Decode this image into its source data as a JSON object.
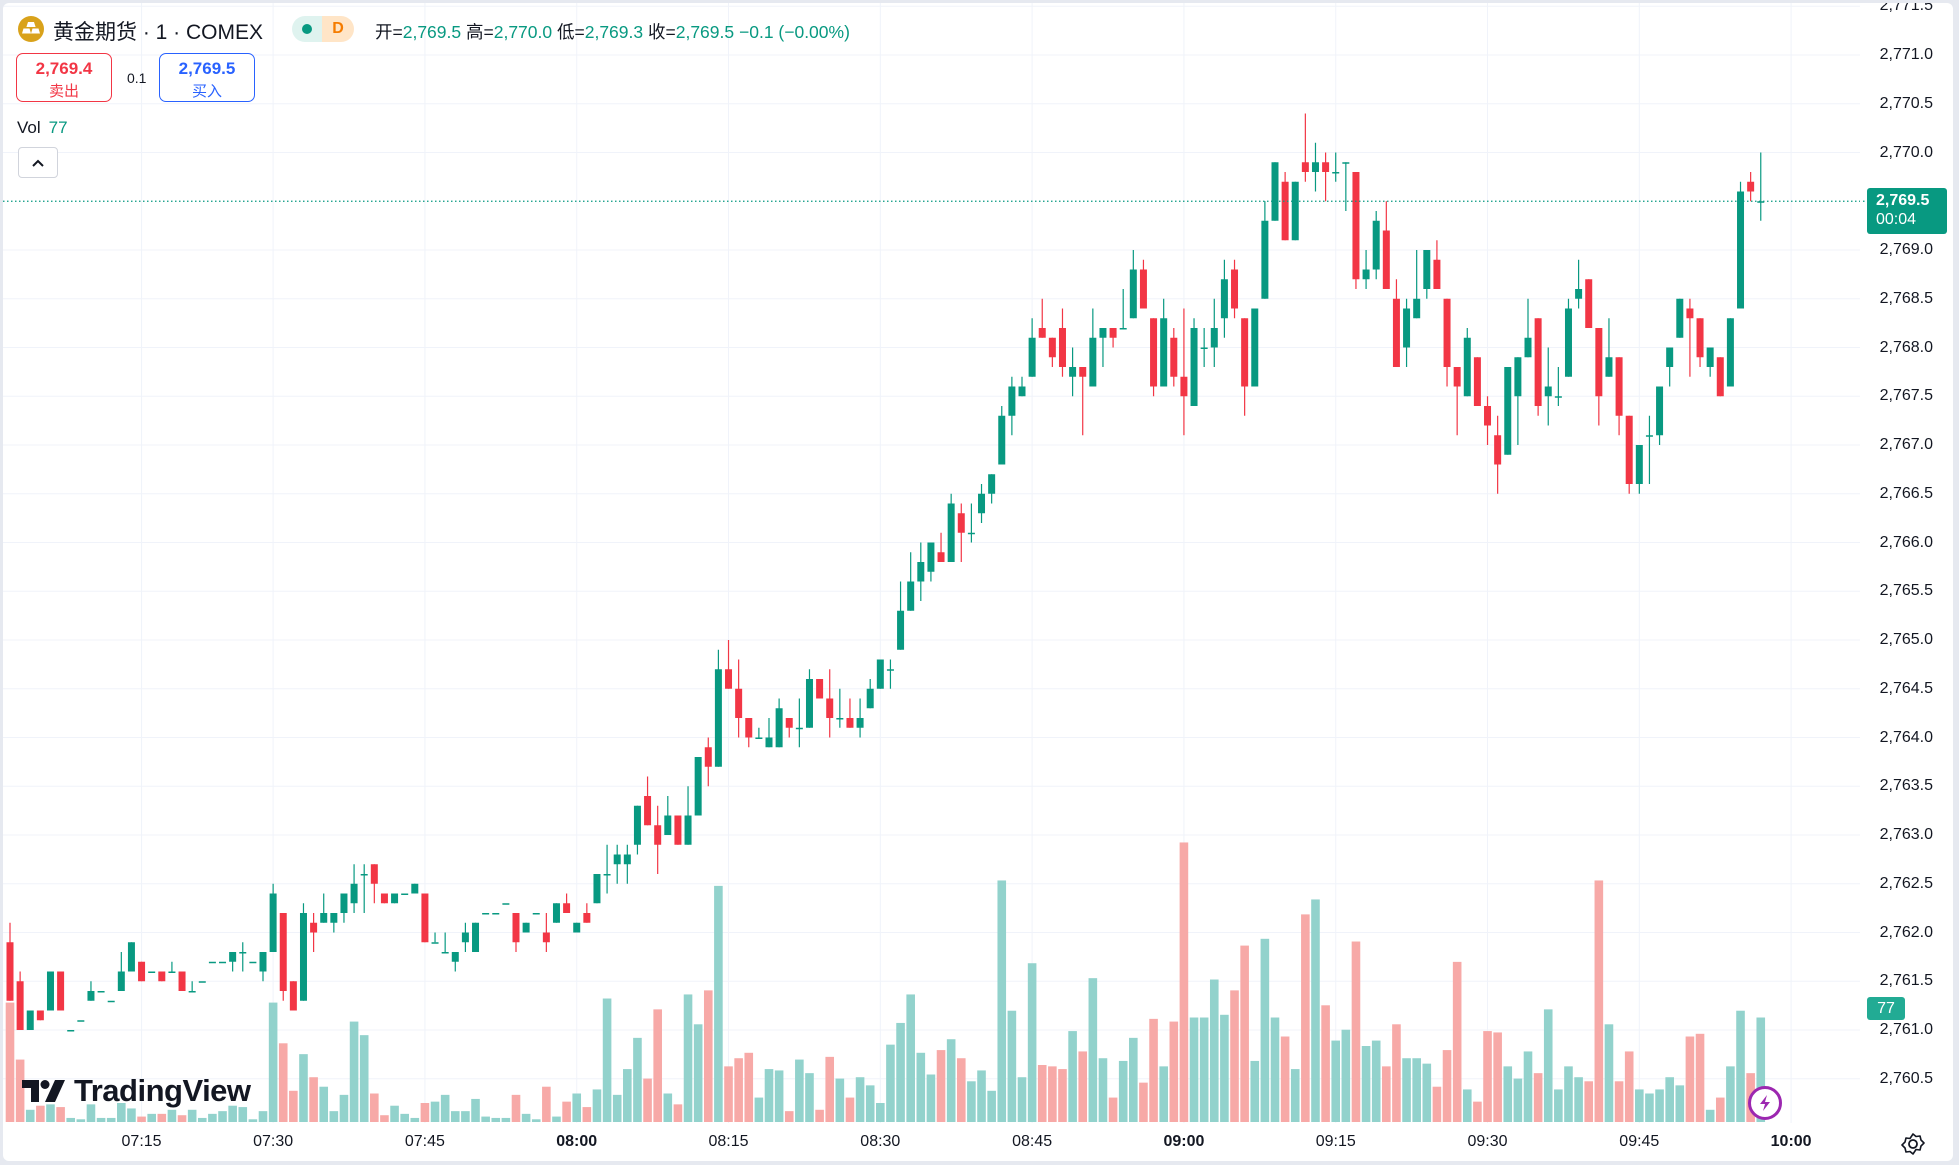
{
  "legend": {
    "symbol_title": "黄金期货 · 1 · COMEX",
    "symbol_icon": "gold-bars-icon",
    "status_letter": "D",
    "ohlc": [
      {
        "key": "开=",
        "value": "2,769.5"
      },
      {
        "key": "高=",
        "value": "2,770.0"
      },
      {
        "key": "低=",
        "value": "2,769.3"
      },
      {
        "key": "收=",
        "value": "2,769.5"
      }
    ],
    "change": "−0.1 (−0.00%)",
    "sell_price": "2,769.4",
    "sell_label": "卖出",
    "spread": "0.1",
    "buy_price": "2,769.5",
    "buy_label": "买入",
    "volume_label": "Vol",
    "volume_value": "77"
  },
  "price_tag": {
    "price": "2,769.5",
    "countdown": "00:04"
  },
  "volume_tag": "77",
  "logo_text": "TradingView",
  "colors": {
    "up": "#089981",
    "down": "#f23645",
    "vol_up": "#92d2cc",
    "vol_down": "#f7a9a7",
    "sell": "#f23645",
    "buy": "#2962ff"
  },
  "chart_data": {
    "type": "candlestick",
    "interval": "1",
    "fields": [
      "open",
      "high",
      "low",
      "close",
      "volume"
    ],
    "ylim": [
      2760.08,
      2771.56
    ],
    "last_price": 2769.5,
    "grid": true,
    "y_ticks": [
      {
        "label": "2,771.5",
        "value": 2771.5
      },
      {
        "label": "2,771.0",
        "value": 2771.0
      },
      {
        "label": "2,770.5",
        "value": 2770.5
      },
      {
        "label": "2,770.0",
        "value": 2770.0
      },
      {
        "label": "2,769.0",
        "value": 2769.0
      },
      {
        "label": "2,768.5",
        "value": 2768.5
      },
      {
        "label": "2,768.0",
        "value": 2768.0
      },
      {
        "label": "2,767.5",
        "value": 2767.5
      },
      {
        "label": "2,767.0",
        "value": 2767.0
      },
      {
        "label": "2,766.5",
        "value": 2766.5
      },
      {
        "label": "2,766.0",
        "value": 2766.0
      },
      {
        "label": "2,765.5",
        "value": 2765.5
      },
      {
        "label": "2,765.0",
        "value": 2765.0
      },
      {
        "label": "2,764.5",
        "value": 2764.5
      },
      {
        "label": "2,764.0",
        "value": 2764.0
      },
      {
        "label": "2,763.5",
        "value": 2763.5
      },
      {
        "label": "2,763.0",
        "value": 2763.0
      },
      {
        "label": "2,762.5",
        "value": 2762.5
      },
      {
        "label": "2,762.0",
        "value": 2762.0
      },
      {
        "label": "2,761.5",
        "value": 2761.5
      },
      {
        "label": "2,761.0",
        "value": 2761.0
      },
      {
        "label": "2,760.5",
        "value": 2760.5
      }
    ],
    "x_ticks": [
      {
        "label": "07:15",
        "bar": 14,
        "bold": false
      },
      {
        "label": "07:30",
        "bar": 27,
        "bold": false
      },
      {
        "label": "07:45",
        "bar": 42,
        "bold": false
      },
      {
        "label": "08:00",
        "bar": 57,
        "bold": true
      },
      {
        "label": "08:15",
        "bar": 72,
        "bold": false
      },
      {
        "label": "08:30",
        "bar": 87,
        "bold": false
      },
      {
        "label": "08:45",
        "bar": 102,
        "bold": false
      },
      {
        "label": "09:00",
        "bar": 117,
        "bold": true
      },
      {
        "label": "09:15",
        "bar": 132,
        "bold": false
      },
      {
        "label": "09:30",
        "bar": 147,
        "bold": false
      },
      {
        "label": "09:45",
        "bar": 162,
        "bold": false
      },
      {
        "label": "10:00",
        "bar": 177,
        "bold": true
      }
    ],
    "ohlcv": [
      [
        2761.9,
        2762.1,
        2761.3,
        2761.3,
        88
      ],
      [
        2761.5,
        2761.6,
        2761.0,
        2761.0,
        46
      ],
      [
        2761.0,
        2761.2,
        2761.0,
        2761.2,
        9
      ],
      [
        2761.2,
        2761.2,
        2761.1,
        2761.1,
        12
      ],
      [
        2761.2,
        2761.6,
        2761.2,
        2761.6,
        13
      ],
      [
        2761.6,
        2761.6,
        2761.2,
        2761.2,
        11
      ],
      [
        2761.0,
        2761.0,
        2761.0,
        2761.0,
        3
      ],
      [
        2761.1,
        2761.1,
        2761.1,
        2761.1,
        2
      ],
      [
        2761.3,
        2761.5,
        2761.3,
        2761.4,
        13
      ],
      [
        2761.4,
        2761.4,
        2761.4,
        2761.4,
        3
      ],
      [
        2761.3,
        2761.3,
        2761.3,
        2761.3,
        3
      ],
      [
        2761.4,
        2761.8,
        2761.4,
        2761.6,
        14
      ],
      [
        2761.6,
        2761.9,
        2761.6,
        2761.9,
        10
      ],
      [
        2761.7,
        2761.7,
        2761.5,
        2761.5,
        4
      ],
      [
        2761.6,
        2761.6,
        2761.6,
        2761.6,
        6
      ],
      [
        2761.6,
        2761.6,
        2761.5,
        2761.5,
        6
      ],
      [
        2761.6,
        2761.7,
        2761.6,
        2761.6,
        9
      ],
      [
        2761.6,
        2761.6,
        2761.4,
        2761.4,
        5
      ],
      [
        2761.4,
        2761.5,
        2761.4,
        2761.4,
        9
      ],
      [
        2761.5,
        2761.5,
        2761.5,
        2761.5,
        3
      ],
      [
        2761.7,
        2761.7,
        2761.7,
        2761.7,
        6
      ],
      [
        2761.7,
        2761.7,
        2761.7,
        2761.7,
        8
      ],
      [
        2761.7,
        2761.8,
        2761.6,
        2761.8,
        12
      ],
      [
        2761.8,
        2761.9,
        2761.6,
        2761.8,
        11
      ],
      [
        2761.7,
        2761.7,
        2761.7,
        2761.7,
        2
      ],
      [
        2761.6,
        2761.8,
        2761.5,
        2761.8,
        8
      ],
      [
        2761.8,
        2762.5,
        2761.8,
        2762.4,
        88
      ],
      [
        2762.2,
        2762.2,
        2761.3,
        2761.4,
        58
      ],
      [
        2761.5,
        2761.5,
        2761.2,
        2761.2,
        23
      ],
      [
        2761.3,
        2762.3,
        2761.3,
        2762.2,
        50
      ],
      [
        2762.1,
        2762.2,
        2761.8,
        2762.0,
        33
      ],
      [
        2762.1,
        2762.4,
        2762.1,
        2762.2,
        26
      ],
      [
        2762.1,
        2762.2,
        2762.0,
        2762.2,
        8
      ],
      [
        2762.2,
        2762.4,
        2762.1,
        2762.4,
        20
      ],
      [
        2762.3,
        2762.7,
        2762.2,
        2762.5,
        74
      ],
      [
        2762.6,
        2762.7,
        2762.2,
        2762.6,
        64
      ],
      [
        2762.7,
        2762.7,
        2762.3,
        2762.5,
        21
      ],
      [
        2762.4,
        2762.4,
        2762.3,
        2762.3,
        5
      ],
      [
        2762.3,
        2762.4,
        2762.3,
        2762.4,
        12
      ],
      [
        2762.4,
        2762.4,
        2762.4,
        2762.4,
        6
      ],
      [
        2762.4,
        2762.5,
        2762.4,
        2762.5,
        3
      ],
      [
        2762.4,
        2762.4,
        2761.9,
        2761.9,
        14
      ],
      [
        2761.9,
        2762.0,
        2761.9,
        2761.9,
        15
      ],
      [
        2761.8,
        2762.0,
        2761.8,
        2761.8,
        20
      ],
      [
        2761.7,
        2761.8,
        2761.6,
        2761.8,
        8
      ],
      [
        2761.9,
        2762.1,
        2761.8,
        2762.0,
        8
      ],
      [
        2761.8,
        2762.1,
        2761.8,
        2762.1,
        17
      ],
      [
        2762.2,
        2762.2,
        2762.2,
        2762.2,
        4
      ],
      [
        2762.2,
        2762.2,
        2762.2,
        2762.2,
        3
      ],
      [
        2762.3,
        2762.3,
        2762.3,
        2762.3,
        3
      ],
      [
        2762.2,
        2762.2,
        2761.8,
        2761.9,
        20
      ],
      [
        2762.0,
        2762.1,
        2762.0,
        2762.1,
        6
      ],
      [
        2762.2,
        2762.2,
        2762.2,
        2762.2,
        2
      ],
      [
        2762.0,
        2762.2,
        2761.8,
        2761.9,
        26
      ],
      [
        2762.1,
        2762.3,
        2762.1,
        2762.3,
        4
      ],
      [
        2762.3,
        2762.4,
        2762.2,
        2762.2,
        15
      ],
      [
        2762.0,
        2762.1,
        2762.0,
        2762.1,
        21
      ],
      [
        2762.2,
        2762.3,
        2762.1,
        2762.1,
        11
      ],
      [
        2762.3,
        2762.6,
        2762.3,
        2762.6,
        24
      ],
      [
        2762.6,
        2762.9,
        2762.4,
        2762.6,
        91
      ],
      [
        2762.7,
        2762.9,
        2762.5,
        2762.8,
        20
      ],
      [
        2762.7,
        2762.9,
        2762.5,
        2762.8,
        39
      ],
      [
        2762.9,
        2763.3,
        2762.8,
        2763.3,
        62
      ],
      [
        2763.4,
        2763.6,
        2763.1,
        2763.1,
        32
      ],
      [
        2763.1,
        2763.3,
        2762.6,
        2762.9,
        83
      ],
      [
        2763.0,
        2763.4,
        2763.0,
        2763.2,
        21
      ],
      [
        2763.2,
        2763.2,
        2762.9,
        2762.9,
        13
      ],
      [
        2762.9,
        2763.5,
        2762.9,
        2763.2,
        94
      ],
      [
        2763.2,
        2763.8,
        2763.2,
        2763.8,
        72
      ],
      [
        2763.9,
        2764.0,
        2763.5,
        2763.7,
        97
      ],
      [
        2763.7,
        2764.9,
        2763.7,
        2764.7,
        174
      ],
      [
        2764.7,
        2765.0,
        2764.5,
        2764.5,
        41
      ],
      [
        2764.5,
        2764.8,
        2764.0,
        2764.2,
        47
      ],
      [
        2764.2,
        2764.2,
        2763.9,
        2764.0,
        51
      ],
      [
        2764.0,
        2764.1,
        2764.0,
        2764.0,
        18
      ],
      [
        2763.9,
        2764.2,
        2763.9,
        2764.0,
        39
      ],
      [
        2763.9,
        2764.4,
        2763.9,
        2764.3,
        38
      ],
      [
        2764.2,
        2764.2,
        2764.0,
        2764.1,
        8
      ],
      [
        2764.1,
        2764.4,
        2763.9,
        2764.1,
        46
      ],
      [
        2764.1,
        2764.7,
        2764.1,
        2764.6,
        36
      ],
      [
        2764.6,
        2764.6,
        2764.4,
        2764.4,
        9
      ],
      [
        2764.4,
        2764.7,
        2764.0,
        2764.2,
        48
      ],
      [
        2764.2,
        2764.5,
        2764.1,
        2764.2,
        32
      ],
      [
        2764.2,
        2764.4,
        2764.1,
        2764.1,
        18
      ],
      [
        2764.1,
        2764.4,
        2764.0,
        2764.2,
        33
      ],
      [
        2764.3,
        2764.6,
        2764.3,
        2764.5,
        27
      ],
      [
        2764.5,
        2764.8,
        2764.5,
        2764.8,
        14
      ],
      [
        2764.7,
        2764.8,
        2764.5,
        2764.7,
        57
      ],
      [
        2764.9,
        2765.6,
        2764.9,
        2765.3,
        73
      ],
      [
        2765.3,
        2765.9,
        2765.3,
        2765.6,
        94
      ],
      [
        2765.6,
        2766.0,
        2765.4,
        2765.8,
        51
      ],
      [
        2765.7,
        2766.0,
        2765.6,
        2766.0,
        35
      ],
      [
        2765.9,
        2766.1,
        2765.8,
        2765.8,
        53
      ],
      [
        2765.8,
        2766.5,
        2765.8,
        2766.4,
        61
      ],
      [
        2766.3,
        2766.4,
        2765.8,
        2766.1,
        47
      ],
      [
        2766.1,
        2766.4,
        2766.0,
        2766.1,
        30
      ],
      [
        2766.3,
        2766.6,
        2766.2,
        2766.5,
        38
      ],
      [
        2766.5,
        2766.7,
        2766.4,
        2766.7,
        23
      ],
      [
        2766.8,
        2767.4,
        2766.8,
        2767.3,
        178
      ],
      [
        2767.3,
        2767.7,
        2767.1,
        2767.6,
        82
      ],
      [
        2767.5,
        2767.7,
        2767.5,
        2767.6,
        33
      ],
      [
        2767.7,
        2768.3,
        2767.7,
        2768.1,
        117
      ],
      [
        2768.2,
        2768.5,
        2768.1,
        2768.1,
        42
      ],
      [
        2768.1,
        2768.1,
        2767.8,
        2767.9,
        41
      ],
      [
        2768.2,
        2768.4,
        2767.7,
        2767.8,
        39
      ],
      [
        2767.7,
        2768.0,
        2767.5,
        2767.8,
        67
      ],
      [
        2767.8,
        2767.8,
        2767.1,
        2767.7,
        52
      ],
      [
        2767.6,
        2768.4,
        2767.6,
        2768.1,
        106
      ],
      [
        2768.1,
        2768.2,
        2767.8,
        2768.2,
        47
      ],
      [
        2768.2,
        2768.2,
        2768.0,
        2768.1,
        18
      ],
      [
        2768.2,
        2768.6,
        2768.2,
        2768.2,
        45
      ],
      [
        2768.3,
        2769.0,
        2768.3,
        2768.8,
        62
      ],
      [
        2768.8,
        2768.9,
        2768.4,
        2768.4,
        29
      ],
      [
        2768.3,
        2768.3,
        2767.5,
        2767.6,
        76
      ],
      [
        2767.6,
        2768.5,
        2767.6,
        2768.3,
        41
      ],
      [
        2768.1,
        2768.2,
        2767.6,
        2767.7,
        74
      ],
      [
        2767.7,
        2768.4,
        2767.1,
        2767.5,
        206
      ],
      [
        2767.4,
        2768.3,
        2767.4,
        2768.2,
        77
      ],
      [
        2768.0,
        2768.2,
        2767.8,
        2768.0,
        77
      ],
      [
        2768.0,
        2768.5,
        2767.8,
        2768.2,
        105
      ],
      [
        2768.3,
        2768.9,
        2768.1,
        2768.7,
        79
      ],
      [
        2768.8,
        2768.9,
        2768.3,
        2768.4,
        97
      ],
      [
        2768.3,
        2768.3,
        2767.3,
        2767.6,
        130
      ],
      [
        2767.6,
        2768.4,
        2767.6,
        2768.4,
        45
      ],
      [
        2768.5,
        2769.5,
        2768.5,
        2769.3,
        135
      ],
      [
        2769.3,
        2769.9,
        2769.3,
        2769.9,
        77
      ],
      [
        2769.7,
        2769.8,
        2769.1,
        2769.1,
        63
      ],
      [
        2769.1,
        2769.7,
        2769.1,
        2769.7,
        39
      ],
      [
        2769.9,
        2770.4,
        2769.7,
        2769.8,
        153
      ],
      [
        2769.8,
        2770.1,
        2769.6,
        2769.9,
        164
      ],
      [
        2769.9,
        2770.0,
        2769.5,
        2769.8,
        86
      ],
      [
        2769.8,
        2770.0,
        2769.7,
        2769.8,
        60
      ],
      [
        2769.9,
        2769.9,
        2769.4,
        2769.9,
        68
      ],
      [
        2769.8,
        2769.8,
        2768.6,
        2768.7,
        133
      ],
      [
        2768.7,
        2769.0,
        2768.6,
        2768.8,
        56
      ],
      [
        2768.8,
        2769.4,
        2768.7,
        2769.3,
        60
      ],
      [
        2769.2,
        2769.5,
        2768.6,
        2768.6,
        41
      ],
      [
        2768.5,
        2768.7,
        2767.8,
        2767.8,
        72
      ],
      [
        2768.0,
        2768.5,
        2767.8,
        2768.4,
        47
      ],
      [
        2768.3,
        2769.0,
        2768.3,
        2768.5,
        47
      ],
      [
        2768.6,
        2769.0,
        2768.5,
        2769.0,
        43
      ],
      [
        2768.9,
        2769.1,
        2768.6,
        2768.6,
        26
      ],
      [
        2768.5,
        2768.5,
        2767.6,
        2767.8,
        53
      ],
      [
        2767.8,
        2767.8,
        2767.1,
        2767.6,
        118
      ],
      [
        2767.5,
        2768.2,
        2767.5,
        2768.1,
        24
      ],
      [
        2767.9,
        2767.9,
        2767.4,
        2767.4,
        15
      ],
      [
        2767.4,
        2767.5,
        2767.0,
        2767.2,
        67
      ],
      [
        2767.1,
        2767.3,
        2766.5,
        2766.8,
        66
      ],
      [
        2766.9,
        2767.8,
        2766.9,
        2767.8,
        41
      ],
      [
        2767.5,
        2767.9,
        2767.0,
        2767.9,
        32
      ],
      [
        2767.9,
        2768.5,
        2767.9,
        2768.1,
        52
      ],
      [
        2768.3,
        2768.3,
        2767.3,
        2767.4,
        36
      ],
      [
        2767.5,
        2768.0,
        2767.2,
        2767.6,
        83
      ],
      [
        2767.5,
        2767.8,
        2767.4,
        2767.5,
        24
      ],
      [
        2767.7,
        2768.5,
        2767.7,
        2768.4,
        41
      ],
      [
        2768.5,
        2768.9,
        2768.4,
        2768.6,
        33
      ],
      [
        2768.7,
        2768.7,
        2768.2,
        2768.2,
        30
      ],
      [
        2768.2,
        2768.2,
        2767.2,
        2767.5,
        178
      ],
      [
        2767.7,
        2768.3,
        2767.7,
        2767.9,
        72
      ],
      [
        2767.9,
        2767.9,
        2767.1,
        2767.3,
        30
      ],
      [
        2767.3,
        2767.3,
        2766.5,
        2766.6,
        52
      ],
      [
        2766.6,
        2767.0,
        2766.5,
        2767.0,
        24
      ],
      [
        2767.1,
        2767.3,
        2766.6,
        2767.1,
        21
      ],
      [
        2767.1,
        2767.6,
        2767.0,
        2767.6,
        24
      ],
      [
        2767.8,
        2768.0,
        2767.6,
        2768.0,
        33
      ],
      [
        2768.1,
        2768.5,
        2768.1,
        2768.5,
        27
      ],
      [
        2768.4,
        2768.5,
        2767.7,
        2768.3,
        63
      ],
      [
        2768.3,
        2768.3,
        2767.8,
        2767.9,
        65
      ],
      [
        2767.8,
        2768.0,
        2767.7,
        2768.0,
        9
      ],
      [
        2767.9,
        2767.9,
        2767.5,
        2767.5,
        18
      ],
      [
        2767.6,
        2768.3,
        2767.6,
        2768.3,
        41
      ],
      [
        2768.4,
        2769.7,
        2768.4,
        2769.6,
        82
      ],
      [
        2769.7,
        2769.8,
        2769.5,
        2769.6,
        36
      ],
      [
        2769.5,
        2770.0,
        2769.3,
        2769.5,
        77
      ]
    ]
  }
}
